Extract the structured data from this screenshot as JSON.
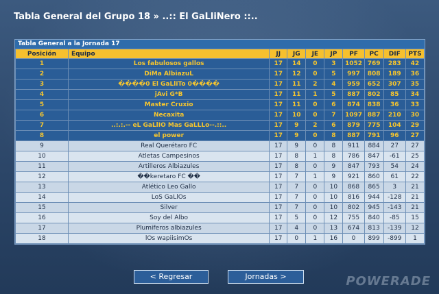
{
  "header": {
    "title": "Tabla General del Grupo 18 » ..:: El GaLliNero ::.."
  },
  "panel": {
    "title": "Tabla General a la Jornada 17"
  },
  "table": {
    "columns": [
      "Posición",
      "Equipo",
      "JJ",
      "JG",
      "JE",
      "JP",
      "PF",
      "PC",
      "DIF",
      "PTS"
    ],
    "rows": [
      [
        "1",
        "Los fabulosos gallos",
        "17",
        "14",
        "0",
        "3",
        "1052",
        "769",
        "283",
        "42"
      ],
      [
        "2",
        "DiMa AlbiazuL",
        "17",
        "12",
        "0",
        "5",
        "997",
        "808",
        "189",
        "36"
      ],
      [
        "3",
        "����0 El GaLliTo 0����",
        "17",
        "11",
        "2",
        "4",
        "959",
        "652",
        "307",
        "35"
      ],
      [
        "4",
        "jAvi G*B",
        "17",
        "11",
        "1",
        "5",
        "887",
        "802",
        "85",
        "34"
      ],
      [
        "5",
        "Master Cruxio",
        "17",
        "11",
        "0",
        "6",
        "874",
        "838",
        "36",
        "33"
      ],
      [
        "6",
        "Necaxita",
        "17",
        "10",
        "0",
        "7",
        "1097",
        "887",
        "210",
        "30"
      ],
      [
        "7",
        "..:.:.-- eL GaLlIO Mas GaLLLo--.::..",
        "17",
        "9",
        "2",
        "6",
        "879",
        "775",
        "104",
        "29"
      ],
      [
        "8",
        "el power",
        "17",
        "9",
        "0",
        "8",
        "887",
        "791",
        "96",
        "27"
      ],
      [
        "9",
        "Real Querétaro FC",
        "17",
        "9",
        "0",
        "8",
        "911",
        "884",
        "27",
        "27"
      ],
      [
        "10",
        "Atletas Campesinos",
        "17",
        "8",
        "1",
        "8",
        "786",
        "847",
        "-61",
        "25"
      ],
      [
        "11",
        "Artilleros Albiazules",
        "17",
        "8",
        "0",
        "9",
        "847",
        "793",
        "54",
        "24"
      ],
      [
        "12",
        "��keretaro FC ��",
        "17",
        "7",
        "1",
        "9",
        "921",
        "860",
        "61",
        "22"
      ],
      [
        "13",
        "Atlético Leo Gallo",
        "17",
        "7",
        "0",
        "10",
        "868",
        "865",
        "3",
        "21"
      ],
      [
        "14",
        "LoS GaLlOs",
        "17",
        "7",
        "0",
        "10",
        "816",
        "944",
        "-128",
        "21"
      ],
      [
        "15",
        "Silver",
        "17",
        "7",
        "0",
        "10",
        "802",
        "945",
        "-143",
        "21"
      ],
      [
        "16",
        "Soy del Albo",
        "17",
        "5",
        "0",
        "12",
        "755",
        "840",
        "-85",
        "15"
      ],
      [
        "17",
        "Plumiferos albiazules",
        "17",
        "4",
        "0",
        "13",
        "674",
        "813",
        "-139",
        "12"
      ],
      [
        "18",
        "lOs wapiisimOs",
        "17",
        "0",
        "1",
        "16",
        "0",
        "899",
        "-899",
        "1"
      ]
    ]
  },
  "buttons": {
    "back": "< Regresar",
    "rounds": "Jornadas >"
  },
  "brand": {
    "watermark": "POWERADE"
  },
  "colors": {
    "top_row_bg": "#2a5d97",
    "top_row_text": "#f7c62e",
    "header_bg": "#f6c02e",
    "panel_header_bg": "#2f6cab"
  }
}
